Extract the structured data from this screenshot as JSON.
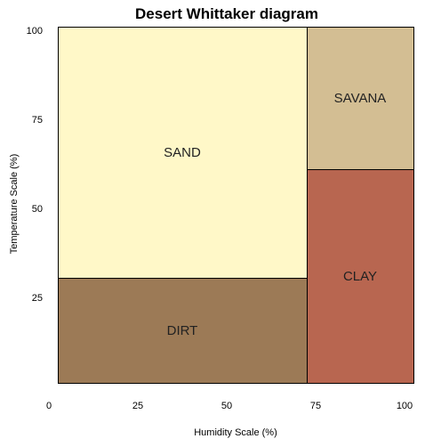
{
  "chart_data": {
    "type": "table",
    "title": "Desert Whittaker diagram",
    "xlabel": "Humidity Scale (%)",
    "ylabel": "Temperature Scale (%)",
    "xlim": [
      0,
      100
    ],
    "ylim": [
      0,
      100
    ],
    "grid": false,
    "xticks": [
      {
        "value": 0,
        "label": "0"
      },
      {
        "value": 25,
        "label": "25"
      },
      {
        "value": 50,
        "label": "50"
      },
      {
        "value": 75,
        "label": "75"
      },
      {
        "value": 100,
        "label": "100"
      }
    ],
    "yticks": [
      {
        "value": 25,
        "label": "25"
      },
      {
        "value": 50,
        "label": "50"
      },
      {
        "value": 75,
        "label": "75"
      },
      {
        "value": 100,
        "label": "100"
      }
    ],
    "regions": [
      {
        "id": "sand",
        "label": "SAND",
        "x0": 0,
        "x1": 70,
        "y0": 29.5,
        "y1": 100,
        "color": "#fff8c8"
      },
      {
        "id": "dirt",
        "label": "DIRT",
        "x0": 0,
        "x1": 70,
        "y0": 0,
        "y1": 29.5,
        "color": "#9c7a56"
      },
      {
        "id": "savana",
        "label": "SAVANA",
        "x0": 70,
        "x1": 100,
        "y0": 60,
        "y1": 100,
        "color": "#d3be93"
      },
      {
        "id": "clay",
        "label": "CLAY",
        "x0": 70,
        "x1": 100,
        "y0": 0,
        "y1": 60,
        "color": "#b86650"
      }
    ]
  }
}
